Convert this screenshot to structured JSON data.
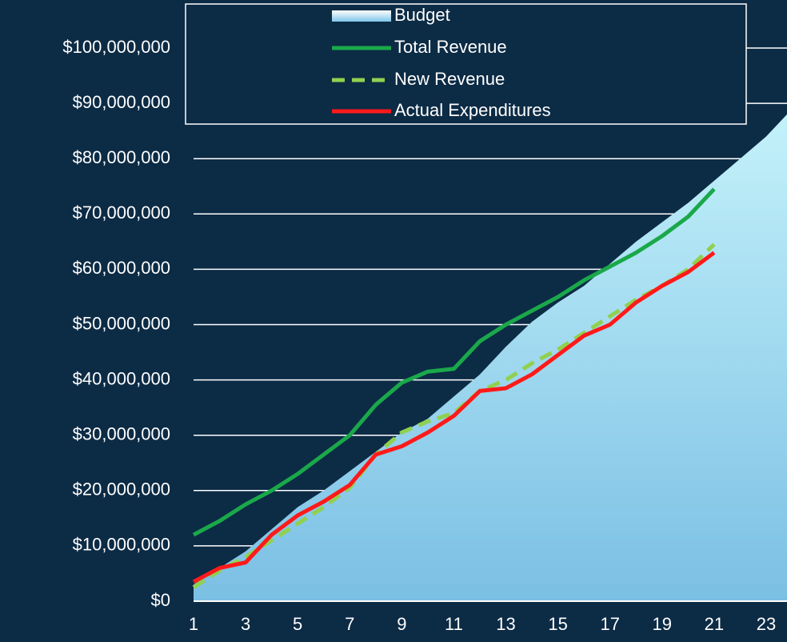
{
  "chart_data": {
    "type": "line",
    "x": [
      1,
      2,
      3,
      4,
      5,
      6,
      7,
      8,
      9,
      10,
      11,
      12,
      13,
      14,
      15,
      16,
      17,
      18,
      19,
      20,
      21,
      22,
      23,
      24
    ],
    "xlim": [
      1,
      23.8
    ],
    "xticks": [
      1,
      3,
      5,
      7,
      9,
      11,
      13,
      15,
      17,
      19,
      21,
      23
    ],
    "ylim": [
      0,
      100000000
    ],
    "yticks": [
      {
        "value": 0,
        "label": "$0"
      },
      {
        "value": 10000000,
        "label": "$10,000,000"
      },
      {
        "value": 20000000,
        "label": "$20,000,000"
      },
      {
        "value": 30000000,
        "label": "$30,000,000"
      },
      {
        "value": 40000000,
        "label": "$40,000,000"
      },
      {
        "value": 50000000,
        "label": "$50,000,000"
      },
      {
        "value": 60000000,
        "label": "$60,000,000"
      },
      {
        "value": 70000000,
        "label": "$70,000,000"
      },
      {
        "value": 80000000,
        "label": "$80,000,000"
      },
      {
        "value": 90000000,
        "label": "$90,000,000"
      },
      {
        "value": 100000000,
        "label": "$100,000,000"
      }
    ],
    "grid": true,
    "legend": "top",
    "series": [
      {
        "name": "Budget",
        "kind": "area",
        "color": "#9edcf2",
        "values": [
          3000000,
          6000000,
          9000000,
          13000000,
          17000000,
          20000000,
          23500000,
          27000000,
          30500000,
          33000000,
          37000000,
          41000000,
          46000000,
          50500000,
          54000000,
          57000000,
          61000000,
          65000000,
          68500000,
          72000000,
          76000000,
          80000000,
          84000000,
          89000000
        ]
      },
      {
        "name": "Total Revenue",
        "kind": "line",
        "color": "#1aa84a",
        "dash": false,
        "values": [
          12000000,
          14500000,
          17500000,
          20000000,
          23000000,
          26500000,
          30000000,
          35500000,
          39500000,
          41500000,
          42000000,
          47000000,
          50000000,
          52500000,
          55000000,
          58000000,
          60500000,
          63000000,
          66000000,
          69500000,
          74500000,
          null,
          null,
          null
        ]
      },
      {
        "name": "New Revenue",
        "kind": "line",
        "color": "#8fd14f",
        "dash": true,
        "values": [
          2500000,
          5500000,
          8000000,
          11000000,
          14000000,
          17000000,
          20500000,
          26500000,
          30500000,
          32500000,
          34000000,
          38000000,
          40000000,
          43000000,
          45500000,
          48500000,
          51500000,
          54500000,
          57000000,
          60000000,
          64500000,
          null,
          null,
          null
        ]
      },
      {
        "name": "Actual Expenditures",
        "kind": "line",
        "color": "#ff1a1a",
        "dash": false,
        "values": [
          3500000,
          6000000,
          7000000,
          12000000,
          15500000,
          18000000,
          21000000,
          26500000,
          28000000,
          30500000,
          33500000,
          38000000,
          38500000,
          41000000,
          44500000,
          48000000,
          50000000,
          54000000,
          57000000,
          59500000,
          63000000,
          null,
          null,
          null
        ]
      }
    ]
  }
}
